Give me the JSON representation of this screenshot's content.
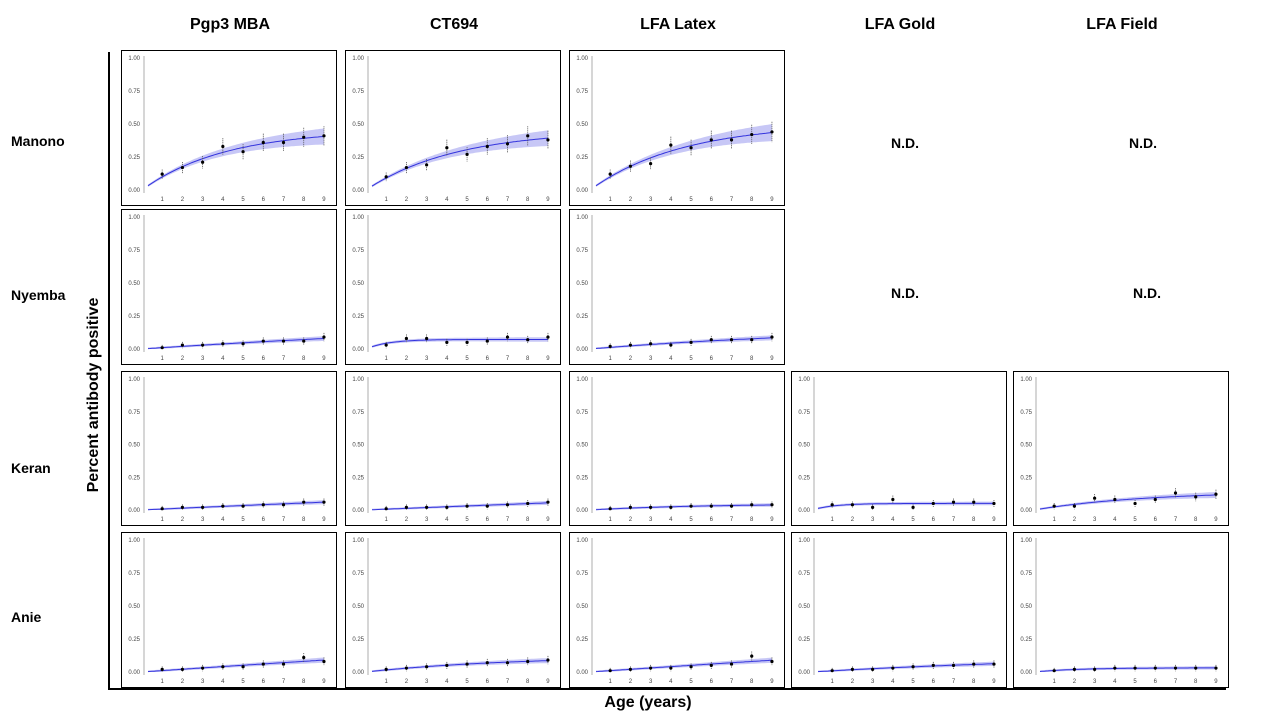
{
  "columns": [
    "Pgp3 MBA",
    "CT694",
    "LFA Latex",
    "LFA Gold",
    "LFA Field"
  ],
  "rows": [
    "Manono",
    "Nyemba",
    "Keran",
    "Anie"
  ],
  "y_axis_label": "Percent antibody  positive",
  "x_axis_label": "Age (years)",
  "not_done_label": "N.D.",
  "colors": {
    "band": "#9999ee",
    "line": "#3333dd",
    "point": "#000000",
    "error": "#555555",
    "frame": "#000000"
  },
  "chart_data": [
    {
      "row": "Manono",
      "column": "Pgp3 MBA",
      "type": "scatter",
      "x": [
        1,
        2,
        3,
        4,
        5,
        6,
        7,
        8,
        9
      ],
      "y": [
        0.12,
        0.17,
        0.21,
        0.33,
        0.29,
        0.36,
        0.36,
        0.4,
        0.41
      ],
      "ylim": [
        0,
        1
      ],
      "yticks": [
        "0.00",
        "0.25",
        "0.50",
        "0.75",
        "1.00"
      ],
      "xticks": [
        "1",
        "2",
        "3",
        "4",
        "5",
        "6",
        "7",
        "8",
        "9"
      ],
      "fit_line": true
    },
    {
      "row": "Manono",
      "column": "CT694",
      "type": "scatter",
      "x": [
        1,
        2,
        3,
        4,
        5,
        6,
        7,
        8,
        9
      ],
      "y": [
        0.1,
        0.17,
        0.19,
        0.32,
        0.27,
        0.33,
        0.35,
        0.41,
        0.38
      ],
      "ylim": [
        0,
        1
      ],
      "yticks": [
        "0.00",
        "0.25",
        "0.50",
        "0.75",
        "1.00"
      ],
      "xticks": [
        "1",
        "2",
        "3",
        "4",
        "5",
        "6",
        "7",
        "8",
        "9"
      ],
      "fit_line": true
    },
    {
      "row": "Manono",
      "column": "LFA Latex",
      "type": "scatter",
      "x": [
        1,
        2,
        3,
        4,
        5,
        6,
        7,
        8,
        9
      ],
      "y": [
        0.12,
        0.18,
        0.2,
        0.34,
        0.32,
        0.38,
        0.38,
        0.42,
        0.44
      ],
      "ylim": [
        0,
        1
      ],
      "yticks": [
        "0.00",
        "0.25",
        "0.50",
        "0.75",
        "1.00"
      ],
      "xticks": [
        "1",
        "2",
        "3",
        "4",
        "5",
        "6",
        "7",
        "8",
        "9"
      ],
      "fit_line": true
    },
    {
      "row": "Nyemba",
      "column": "Pgp3 MBA",
      "type": "scatter",
      "x": [
        1,
        2,
        3,
        4,
        5,
        6,
        7,
        8,
        9
      ],
      "y": [
        0.01,
        0.03,
        0.03,
        0.04,
        0.04,
        0.06,
        0.06,
        0.06,
        0.09
      ],
      "ylim": [
        0,
        1
      ],
      "yticks": [
        "0.00",
        "0.25",
        "0.50",
        "0.75",
        "1.00"
      ],
      "xticks": [
        "1",
        "2",
        "3",
        "4",
        "5",
        "6",
        "7",
        "8",
        "9"
      ],
      "fit_line": true
    },
    {
      "row": "Nyemba",
      "column": "CT694",
      "type": "scatter",
      "x": [
        1,
        2,
        3,
        4,
        5,
        6,
        7,
        8,
        9
      ],
      "y": [
        0.03,
        0.08,
        0.08,
        0.05,
        0.05,
        0.06,
        0.09,
        0.07,
        0.09
      ],
      "ylim": [
        0,
        1
      ],
      "yticks": [
        "0.00",
        "0.25",
        "0.50",
        "0.75",
        "1.00"
      ],
      "xticks": [
        "1",
        "2",
        "3",
        "4",
        "5",
        "6",
        "7",
        "8",
        "9"
      ],
      "fit_line": true
    },
    {
      "row": "Nyemba",
      "column": "LFA Latex",
      "type": "scatter",
      "x": [
        1,
        2,
        3,
        4,
        5,
        6,
        7,
        8,
        9
      ],
      "y": [
        0.02,
        0.03,
        0.04,
        0.03,
        0.05,
        0.07,
        0.07,
        0.07,
        0.09
      ],
      "ylim": [
        0,
        1
      ],
      "yticks": [
        "0.00",
        "0.25",
        "0.50",
        "0.75",
        "1.00"
      ],
      "xticks": [
        "1",
        "2",
        "3",
        "4",
        "5",
        "6",
        "7",
        "8",
        "9"
      ],
      "fit_line": true
    },
    {
      "row": "Keran",
      "column": "Pgp3 MBA",
      "type": "scatter",
      "x": [
        1,
        2,
        3,
        4,
        5,
        6,
        7,
        8,
        9
      ],
      "y": [
        0.01,
        0.02,
        0.02,
        0.03,
        0.03,
        0.04,
        0.04,
        0.06,
        0.06
      ],
      "ylim": [
        0,
        1
      ],
      "yticks": [
        "0.00",
        "0.25",
        "0.50",
        "0.75",
        "1.00"
      ],
      "xticks": [
        "1",
        "2",
        "3",
        "4",
        "5",
        "6",
        "7",
        "8",
        "9"
      ],
      "fit_line": true
    },
    {
      "row": "Keran",
      "column": "CT694",
      "type": "scatter",
      "x": [
        1,
        2,
        3,
        4,
        5,
        6,
        7,
        8,
        9
      ],
      "y": [
        0.01,
        0.02,
        0.02,
        0.02,
        0.03,
        0.03,
        0.04,
        0.05,
        0.06
      ],
      "ylim": [
        0,
        1
      ],
      "yticks": [
        "0.00",
        "0.25",
        "0.50",
        "0.75",
        "1.00"
      ],
      "xticks": [
        "1",
        "2",
        "3",
        "4",
        "5",
        "6",
        "7",
        "8",
        "9"
      ],
      "fit_line": true
    },
    {
      "row": "Keran",
      "column": "LFA Latex",
      "type": "scatter",
      "x": [
        1,
        2,
        3,
        4,
        5,
        6,
        7,
        8,
        9
      ],
      "y": [
        0.01,
        0.02,
        0.02,
        0.02,
        0.03,
        0.03,
        0.03,
        0.04,
        0.04
      ],
      "ylim": [
        0,
        1
      ],
      "yticks": [
        "0.00",
        "0.25",
        "0.50",
        "0.75",
        "1.00"
      ],
      "xticks": [
        "1",
        "2",
        "3",
        "4",
        "5",
        "6",
        "7",
        "8",
        "9"
      ],
      "fit_line": true
    },
    {
      "row": "Keran",
      "column": "LFA Gold",
      "type": "scatter",
      "x": [
        1,
        2,
        3,
        4,
        5,
        6,
        7,
        8,
        9
      ],
      "y": [
        0.04,
        0.04,
        0.02,
        0.08,
        0.02,
        0.05,
        0.06,
        0.06,
        0.05
      ],
      "ylim": [
        0,
        1
      ],
      "yticks": [
        "0.00",
        "0.25",
        "0.50",
        "0.75",
        "1.00"
      ],
      "xticks": [
        "1",
        "2",
        "3",
        "4",
        "5",
        "6",
        "7",
        "8",
        "9"
      ],
      "fit_line": true
    },
    {
      "row": "Keran",
      "column": "LFA Field",
      "type": "scatter",
      "x": [
        1,
        2,
        3,
        4,
        5,
        6,
        7,
        8,
        9
      ],
      "y": [
        0.03,
        0.03,
        0.09,
        0.08,
        0.05,
        0.08,
        0.13,
        0.1,
        0.12
      ],
      "ylim": [
        0,
        1
      ],
      "yticks": [
        "0.00",
        "0.25",
        "0.50",
        "0.75",
        "1.00"
      ],
      "xticks": [
        "1",
        "2",
        "3",
        "4",
        "5",
        "6",
        "7",
        "8",
        "9"
      ],
      "fit_line": true
    },
    {
      "row": "Anie",
      "column": "Pgp3 MBA",
      "type": "scatter",
      "x": [
        1,
        2,
        3,
        4,
        5,
        6,
        7,
        8,
        9
      ],
      "y": [
        0.02,
        0.02,
        0.03,
        0.04,
        0.04,
        0.06,
        0.06,
        0.11,
        0.08
      ],
      "ylim": [
        0,
        1
      ],
      "yticks": [
        "0.00",
        "0.25",
        "0.50",
        "0.75",
        "1.00"
      ],
      "xticks": [
        "1",
        "2",
        "3",
        "4",
        "5",
        "6",
        "7",
        "8",
        "9"
      ],
      "fit_line": true
    },
    {
      "row": "Anie",
      "column": "CT694",
      "type": "scatter",
      "x": [
        1,
        2,
        3,
        4,
        5,
        6,
        7,
        8,
        9
      ],
      "y": [
        0.02,
        0.03,
        0.04,
        0.05,
        0.06,
        0.07,
        0.07,
        0.08,
        0.09
      ],
      "ylim": [
        0,
        1
      ],
      "yticks": [
        "0.00",
        "0.25",
        "0.50",
        "0.75",
        "1.00"
      ],
      "xticks": [
        "1",
        "2",
        "3",
        "4",
        "5",
        "6",
        "7",
        "8",
        "9"
      ],
      "fit_line": true
    },
    {
      "row": "Anie",
      "column": "LFA Latex",
      "type": "scatter",
      "x": [
        1,
        2,
        3,
        4,
        5,
        6,
        7,
        8,
        9
      ],
      "y": [
        0.01,
        0.02,
        0.03,
        0.03,
        0.04,
        0.05,
        0.06,
        0.12,
        0.08
      ],
      "ylim": [
        0,
        1
      ],
      "yticks": [
        "0.00",
        "0.25",
        "0.50",
        "0.75",
        "1.00"
      ],
      "xticks": [
        "1",
        "2",
        "3",
        "4",
        "5",
        "6",
        "7",
        "8",
        "9"
      ],
      "fit_line": true
    },
    {
      "row": "Anie",
      "column": "LFA Gold",
      "type": "scatter",
      "x": [
        1,
        2,
        3,
        4,
        5,
        6,
        7,
        8,
        9
      ],
      "y": [
        0.01,
        0.02,
        0.02,
        0.03,
        0.04,
        0.05,
        0.05,
        0.06,
        0.06
      ],
      "ylim": [
        0,
        1
      ],
      "yticks": [
        "0.00",
        "0.25",
        "0.50",
        "0.75",
        "1.00"
      ],
      "xticks": [
        "1",
        "2",
        "3",
        "4",
        "5",
        "6",
        "7",
        "8",
        "9"
      ],
      "fit_line": true
    },
    {
      "row": "Anie",
      "column": "LFA Field",
      "type": "scatter",
      "x": [
        1,
        2,
        3,
        4,
        5,
        6,
        7,
        8,
        9
      ],
      "y": [
        0.01,
        0.02,
        0.02,
        0.03,
        0.03,
        0.03,
        0.03,
        0.03,
        0.03
      ],
      "ylim": [
        0,
        1
      ],
      "yticks": [
        "0.00",
        "0.25",
        "0.50",
        "0.75",
        "1.00"
      ],
      "xticks": [
        "1",
        "2",
        "3",
        "4",
        "5",
        "6",
        "7",
        "8",
        "9"
      ],
      "fit_line": true
    }
  ]
}
